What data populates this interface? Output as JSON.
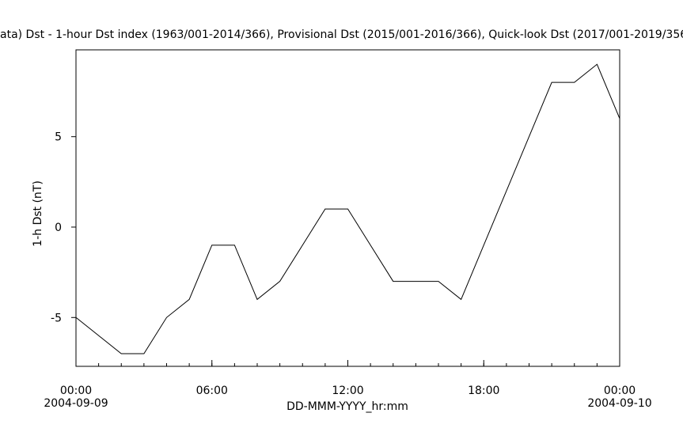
{
  "chart_data": {
    "type": "line",
    "title": "ata)  Dst - 1-hour Dst index (1963/001-2014/366), Provisional Dst (2015/001-2016/366), Quick-look Dst (2017/001-2019/356",
    "x_label": "DD-MMM-YYYY_hr:mm",
    "y_label": "1-h Dst (nT)",
    "x": [
      0,
      1,
      2,
      3,
      4,
      5,
      6,
      7,
      8,
      9,
      10,
      11,
      12,
      13,
      14,
      15,
      16,
      17,
      18,
      19,
      20,
      21,
      22,
      23,
      24
    ],
    "series": [
      {
        "color": "#000000",
        "values": [
          -5,
          -6,
          -7,
          -7,
          -5,
          -4,
          -1,
          -1,
          -4,
          -3,
          -1,
          1,
          1,
          -1,
          -3,
          -3,
          -3,
          -4,
          -1,
          2,
          5,
          8,
          8,
          9,
          6
        ]
      }
    ],
    "xlim": [
      0,
      24
    ],
    "xticks": [
      {
        "value": 0,
        "label": "00:00"
      },
      {
        "value": 6,
        "label": "06:00"
      },
      {
        "value": 12,
        "label": "12:00"
      },
      {
        "value": 18,
        "label": "18:00"
      },
      {
        "value": 24,
        "label": "00:00"
      }
    ],
    "xtick_dates": [
      {
        "value": 0,
        "label": "2004-09-09"
      },
      {
        "value": 24,
        "label": "2004-09-10"
      }
    ],
    "ylim": [
      -7.7,
      9.8
    ],
    "yticks": [
      -5,
      0,
      5
    ]
  }
}
